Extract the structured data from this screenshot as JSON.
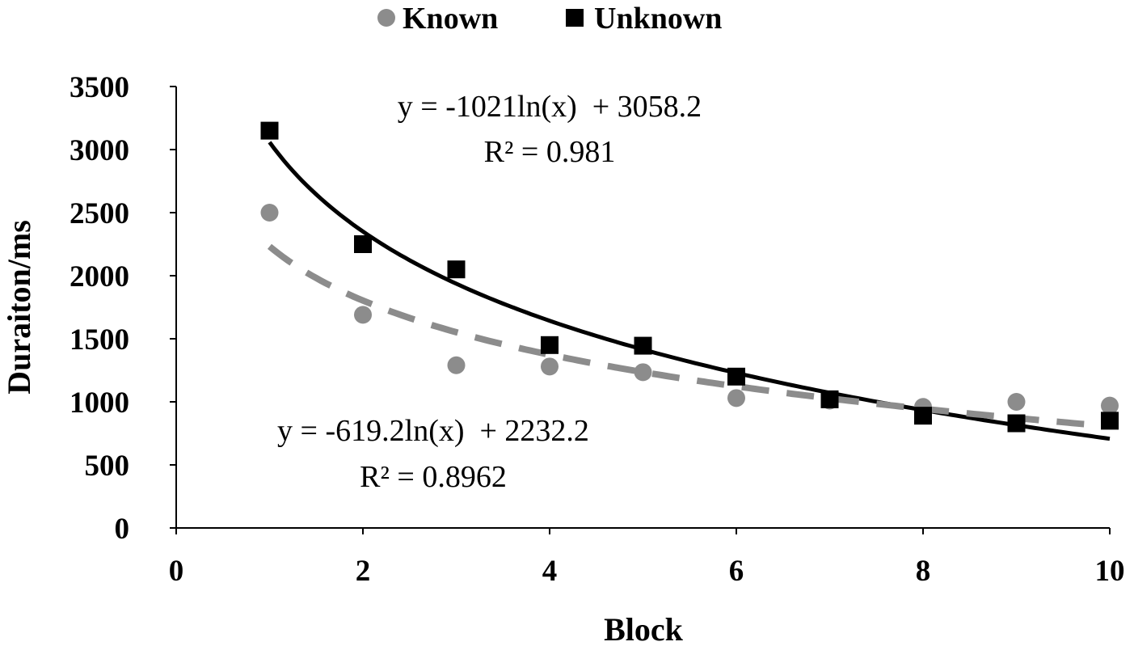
{
  "chart_data": {
    "type": "scatter",
    "xlabel": "Block",
    "ylabel": "Duraiton/ms",
    "xlim": [
      0,
      10
    ],
    "ylim": [
      0,
      3500
    ],
    "x_ticks": [
      0,
      2,
      4,
      6,
      8,
      10
    ],
    "y_ticks": [
      0,
      500,
      1000,
      1500,
      2000,
      2500,
      3000,
      3500
    ],
    "grid": false,
    "legend_position": "top-center",
    "series": [
      {
        "name": "Known",
        "marker": "circle",
        "color": "#8c8c8c",
        "x": [
          1,
          2,
          3,
          4,
          5,
          6,
          7,
          8,
          9,
          10
        ],
        "y": [
          2500,
          1690,
          1290,
          1280,
          1235,
          1030,
          1010,
          960,
          1000,
          970
        ]
      },
      {
        "name": "Unknown",
        "marker": "square",
        "color": "#000000",
        "x": [
          1,
          2,
          3,
          4,
          5,
          6,
          7,
          8,
          9,
          10
        ],
        "y": [
          3150,
          2250,
          2050,
          1450,
          1445,
          1200,
          1020,
          890,
          830,
          850
        ]
      }
    ],
    "trendlines": [
      {
        "series": "Unknown",
        "type": "log",
        "a": -1021,
        "b": 3058.2,
        "style": "solid",
        "color": "#000000",
        "equation": "y = -1021ln(x)  + 3058.2",
        "r2": "R² = 0.981"
      },
      {
        "series": "Known",
        "type": "log",
        "a": -619.2,
        "b": 2232.2,
        "style": "dashed",
        "color": "#8c8c8c",
        "equation": "y = -619.2ln(x)  + 2232.2",
        "r2": "R² = 0.8962"
      }
    ]
  }
}
